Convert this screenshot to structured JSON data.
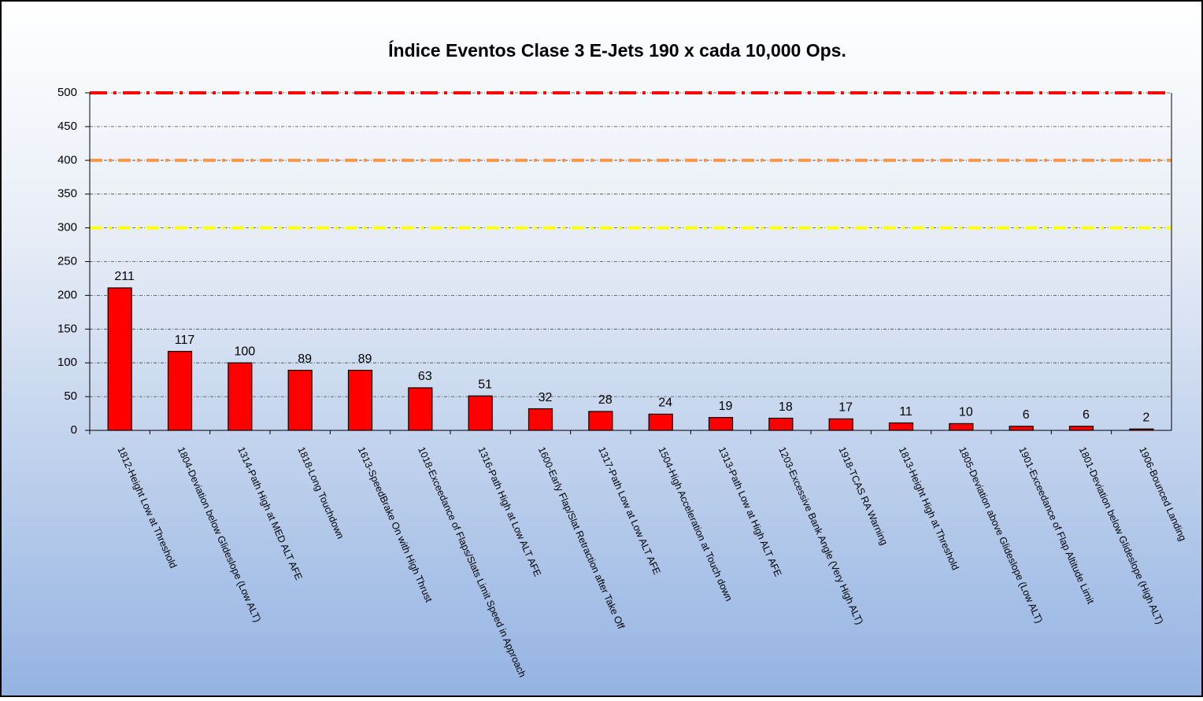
{
  "chart_data": {
    "type": "bar",
    "title": "Índice Eventos Clase 3 E-Jets 190 x cada 10,000 Ops.",
    "categories": [
      "1812-Height Low at Threshold",
      "1804-Deviation below Glideslope (Low ALT)",
      "1314-Path High at MED ALT AFE",
      "1818-Long Touchdown",
      "1613-SpeedBrake On with High Thrust",
      "1018-Exceedance of Flaps/Slats Limit Speed in Approach",
      "1316-Path High at Low ALT AFE",
      "1600-Early Flap/Slat Retraction after Take Off",
      "1317-Path Low at Low ALT AFE",
      "1504-High Acceleration at Touch down",
      "1313-Path Low at High ALT AFE",
      "1203-Excessive Bank Angle (Very High ALT)",
      "1918-TCAS RA Warning",
      "1813-Height High at Threshold",
      "1805-Deviation above Glideslope (Low ALT)",
      "1901-Exceedance of Flap Altitude Limit",
      "1801-Deviation below Glideslope (High ALT)",
      "1906-Bounced Landing"
    ],
    "values": [
      211,
      117,
      100,
      89,
      89,
      63,
      51,
      32,
      28,
      24,
      19,
      18,
      17,
      11,
      10,
      6,
      6,
      2
    ],
    "color": "#ff0000",
    "ylim": [
      0,
      500
    ],
    "yticks": [
      0,
      50,
      100,
      150,
      200,
      250,
      300,
      350,
      400,
      450,
      500
    ],
    "grid": true,
    "reference_lines": [
      {
        "value": 500,
        "color": "#ff0000"
      },
      {
        "value": 400,
        "color": "#f79646"
      },
      {
        "value": 300,
        "color": "#ffff00"
      }
    ]
  }
}
